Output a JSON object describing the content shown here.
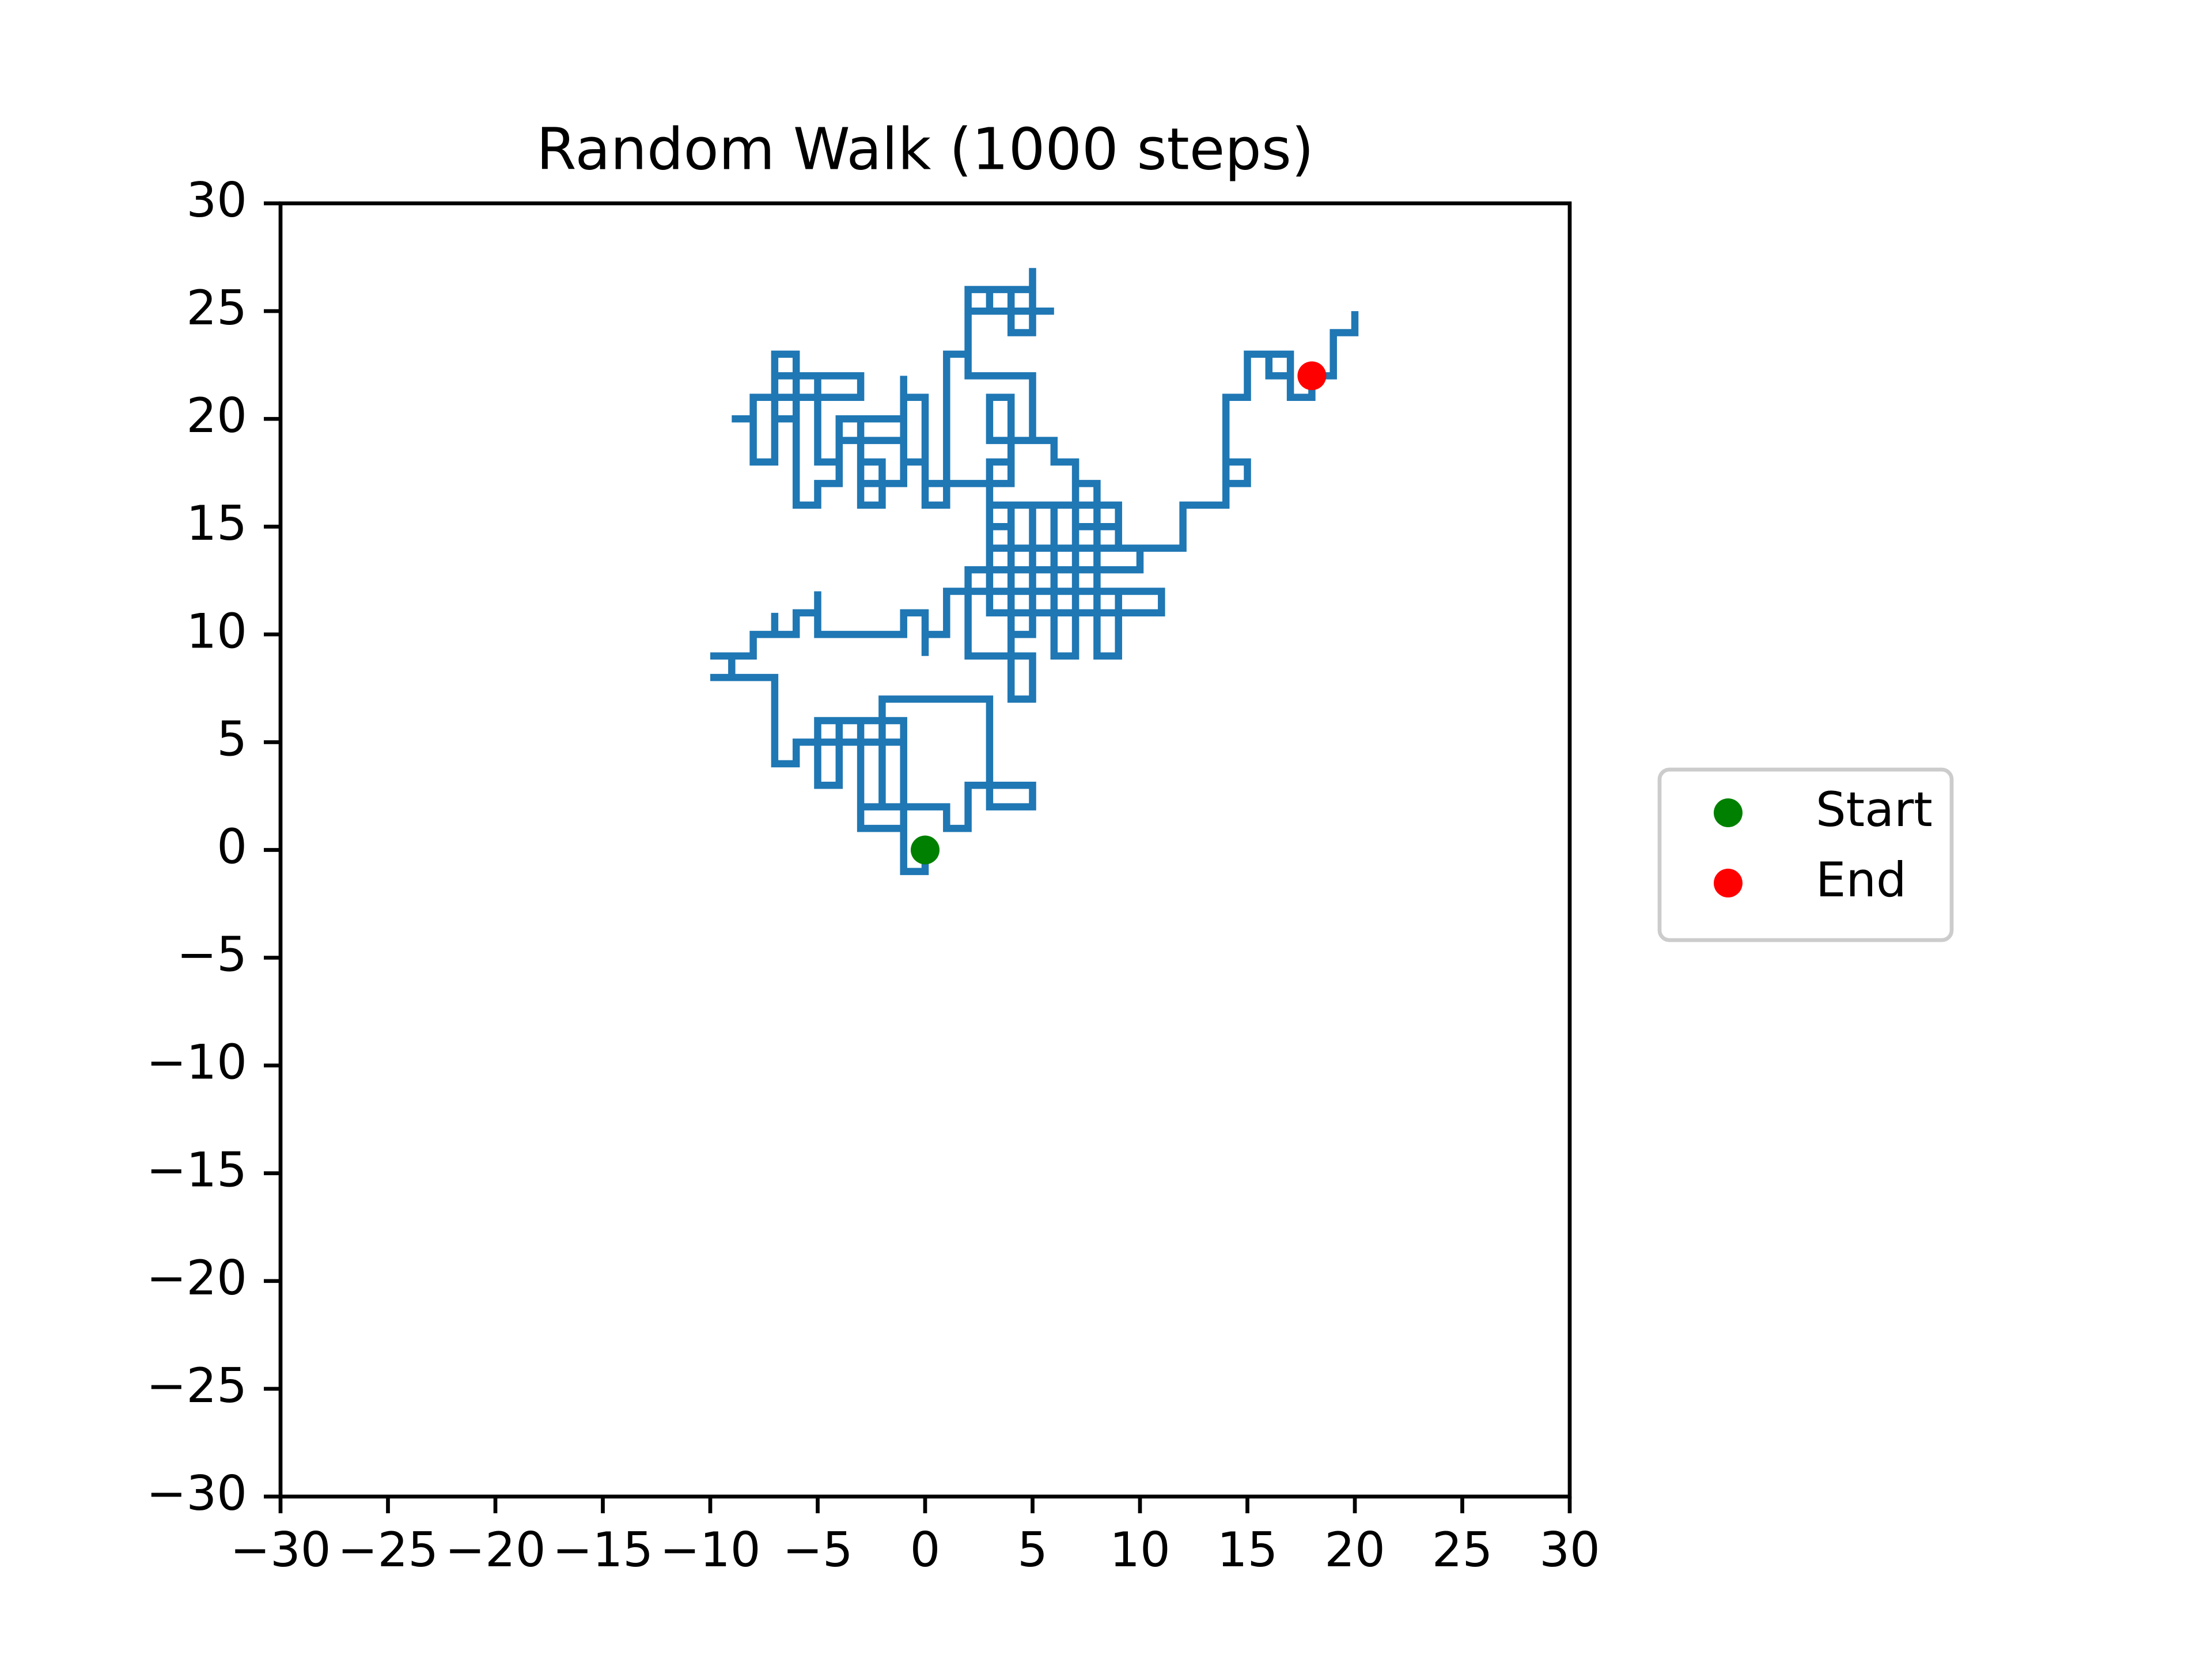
{
  "chart_data": {
    "type": "line",
    "title": "Random Walk (1000 steps)",
    "xlim": [
      -30,
      30
    ],
    "ylim": [
      -30,
      30
    ],
    "xticks": [
      {
        "value": -30,
        "label": "−30"
      },
      {
        "value": -25,
        "label": "−25"
      },
      {
        "value": -20,
        "label": "−20"
      },
      {
        "value": -15,
        "label": "−15"
      },
      {
        "value": -10,
        "label": "−10"
      },
      {
        "value": -5,
        "label": "−5"
      },
      0,
      5,
      10,
      15,
      20,
      25,
      30
    ],
    "yticks": [
      {
        "value": -30,
        "label": "−30"
      },
      {
        "value": -25,
        "label": "−25"
      },
      {
        "value": -20,
        "label": "−20"
      },
      {
        "value": -15,
        "label": "−15"
      },
      {
        "value": -10,
        "label": "−10"
      },
      {
        "value": -5,
        "label": "−5"
      },
      0,
      5,
      10,
      15,
      20,
      25,
      30
    ],
    "legend": "right",
    "series": [
      {
        "color": "#1f77b4",
        "x": [
          0,
          0,
          -1,
          -1,
          -2,
          -2,
          -3,
          -3,
          -4,
          -4,
          -5,
          -5,
          -1,
          -1,
          -3,
          -3,
          1,
          1,
          2,
          2,
          3,
          3,
          5,
          5,
          3,
          3,
          -2,
          -2,
          -6,
          -6,
          -7,
          -7,
          -10,
          -9,
          -9,
          -10,
          -8,
          -8,
          -7,
          -7,
          -7,
          -6,
          -6,
          -5,
          -5,
          -5,
          -1,
          -1,
          0,
          0,
          0,
          1,
          1,
          2,
          2,
          5,
          5,
          4,
          4,
          3,
          3,
          10,
          10,
          2,
          2,
          11,
          11,
          3,
          3,
          4,
          4,
          5,
          5,
          6,
          6,
          7,
          7,
          8,
          8,
          9,
          9,
          8,
          8,
          9,
          9,
          7,
          7,
          6,
          6,
          4,
          4,
          3,
          3,
          4,
          4,
          3,
          3,
          5,
          5,
          2,
          2,
          5,
          5,
          4,
          4,
          3,
          3,
          6,
          5,
          5,
          5,
          2,
          2,
          1,
          1,
          0,
          0,
          -1,
          -1,
          -3,
          -3,
          -2,
          -2,
          -3,
          -3,
          -1,
          -1,
          -4,
          -4,
          -5,
          -5,
          -6,
          -6,
          -7,
          -7,
          -6,
          -6,
          -3,
          -3,
          -7,
          -7,
          -8,
          -8,
          -9,
          -8,
          -8,
          -6,
          -6,
          -5,
          -5,
          -4,
          -4,
          -1,
          -1,
          -1,
          0,
          0,
          3,
          3,
          9,
          9,
          10,
          12,
          12,
          14,
          14,
          15,
          15,
          14,
          14,
          15,
          15,
          17,
          17,
          16,
          16,
          17,
          17,
          18,
          18,
          19,
          19,
          20,
          20,
          20,
          19,
          19,
          18
        ],
        "y": [
          0,
          -1,
          -1,
          5,
          5,
          2,
          2,
          6,
          6,
          3,
          3,
          6,
          6,
          1,
          1,
          2,
          2,
          1,
          1,
          3,
          3,
          2,
          2,
          3,
          3,
          7,
          7,
          5,
          5,
          4,
          4,
          8,
          8,
          8,
          9,
          9,
          9,
          10,
          10,
          11,
          10,
          10,
          11,
          11,
          12,
          10,
          10,
          11,
          11,
          9,
          10,
          10,
          12,
          12,
          9,
          9,
          7,
          7,
          16,
          16,
          14,
          14,
          13,
          13,
          12,
          12,
          11,
          11,
          15,
          15,
          10,
          10,
          16,
          16,
          9,
          9,
          17,
          17,
          9,
          9,
          12,
          12,
          16,
          16,
          15,
          15,
          18,
          18,
          19,
          19,
          17,
          17,
          18,
          18,
          21,
          21,
          19,
          19,
          22,
          22,
          26,
          26,
          24,
          24,
          26,
          26,
          25,
          25,
          25,
          27,
          25,
          25,
          23,
          23,
          16,
          16,
          18,
          18,
          20,
          20,
          16,
          16,
          18,
          18,
          17,
          17,
          19,
          19,
          18,
          18,
          22,
          22,
          20,
          20,
          23,
          23,
          21,
          21,
          22,
          22,
          18,
          18,
          20,
          20,
          20,
          21,
          21,
          16,
          16,
          17,
          17,
          20,
          20,
          22,
          21,
          21,
          17,
          17,
          16,
          16,
          14,
          14,
          14,
          16,
          16,
          18,
          18,
          17,
          17,
          21,
          21,
          23,
          23,
          22,
          22,
          23,
          23,
          21,
          21,
          22,
          22,
          24,
          24,
          25,
          24,
          24,
          22,
          22
        ]
      }
    ],
    "points": [
      {
        "name": "Start",
        "color": "green",
        "x": 0,
        "y": 0
      },
      {
        "name": "End",
        "color": "red",
        "x": 18,
        "y": 22
      }
    ]
  }
}
